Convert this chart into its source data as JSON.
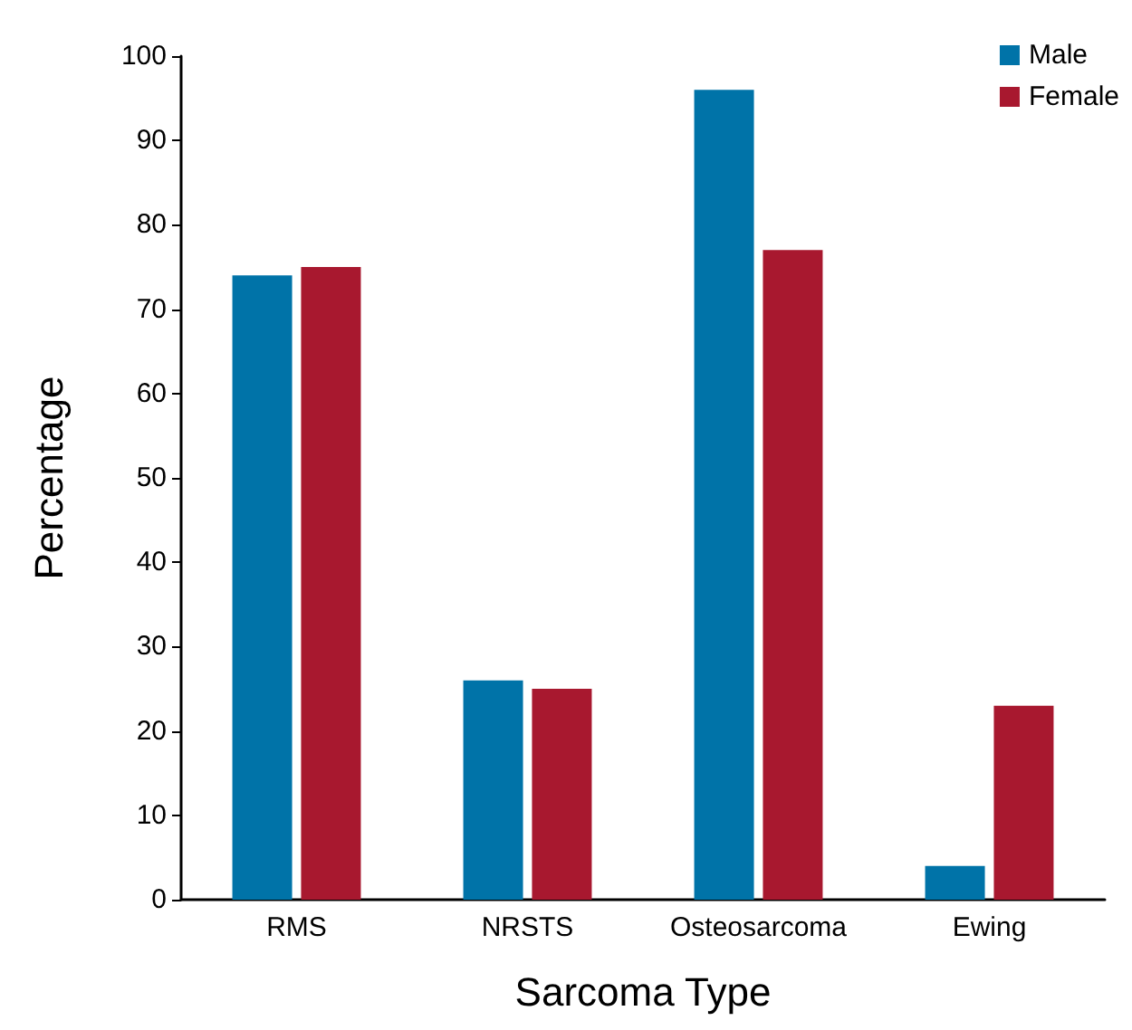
{
  "chart_data": {
    "type": "bar",
    "xlabel": "Sarcoma Type",
    "ylabel": "Percentage",
    "categories": [
      "RMS",
      "NRSTS",
      "Osteosarcoma",
      "Ewing"
    ],
    "series": [
      {
        "name": "Male",
        "color": "#0073a8",
        "values": [
          74,
          26,
          96,
          4
        ]
      },
      {
        "name": "Female",
        "color": "#a8182f",
        "values": [
          75,
          25,
          77,
          23
        ]
      }
    ],
    "ylim": [
      0,
      100
    ],
    "yticks": [
      0,
      10,
      20,
      30,
      40,
      50,
      60,
      70,
      80,
      90,
      100
    ],
    "grid": false,
    "legend": "top right"
  }
}
